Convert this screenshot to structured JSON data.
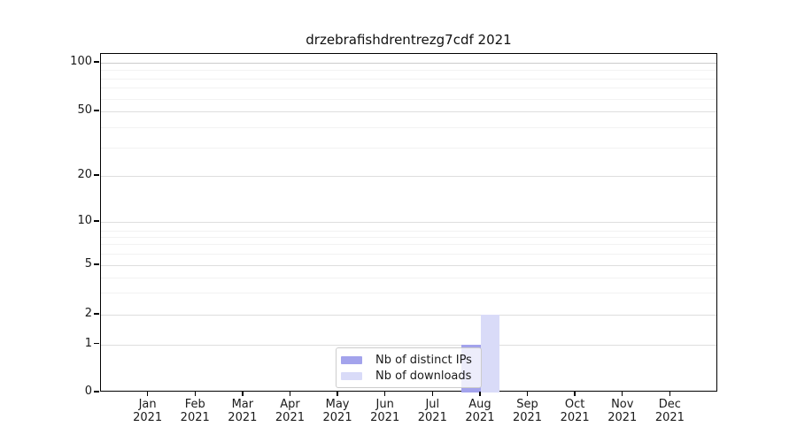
{
  "figure": {
    "title": "drzebrafishdrentrezg7cdf 2021"
  },
  "chart_data": {
    "type": "bar",
    "title": "drzebrafishdrentrezg7cdf 2021",
    "categories": [
      "Jan 2021",
      "Feb 2021",
      "Mar 2021",
      "Apr 2021",
      "May 2021",
      "Jun 2021",
      "Jul 2021",
      "Aug 2021",
      "Sep 2021",
      "Oct 2021",
      "Nov 2021",
      "Dec 2021"
    ],
    "series": [
      {
        "name": "Nb of distinct IPs",
        "color": "#a3a3ec",
        "values": [
          0,
          0,
          0,
          0,
          0,
          0,
          0,
          1,
          0,
          0,
          0,
          0
        ]
      },
      {
        "name": "Nb of downloads",
        "color": "#d9dbf8",
        "values": [
          0,
          0,
          0,
          0,
          0,
          0,
          0,
          2,
          0,
          0,
          0,
          0
        ]
      }
    ],
    "xlabel": "",
    "ylabel": "",
    "y_axis": {
      "scale": "log-like",
      "ticks": [
        0,
        1,
        2,
        5,
        10,
        20,
        50,
        100
      ],
      "range": [
        0,
        100
      ]
    },
    "grid": "horizontal major and minor gridlines",
    "legend_position": "inside bottom-center"
  }
}
